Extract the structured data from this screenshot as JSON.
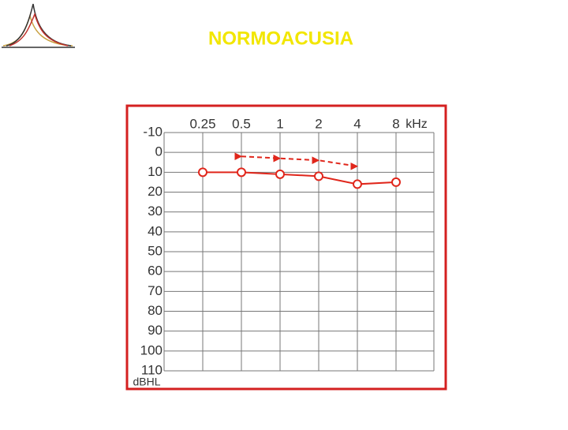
{
  "chart_data": {
    "type": "line",
    "title": "NORMOACUSIA",
    "categories": [
      "0.25",
      "0.5",
      "1",
      "2",
      "4",
      "8"
    ],
    "x_label": "kHz",
    "y_label": "dBHL",
    "series": [
      {
        "color": "#e0261b",
        "linestyle": "solid",
        "marker": "o",
        "values": [
          10,
          10,
          11,
          12,
          16,
          15
        ]
      },
      {
        "color": "#e0261b",
        "linestyle": "dashed",
        "marker": ">",
        "values": [
          null,
          2,
          3,
          4,
          7,
          null
        ]
      }
    ],
    "ylim": [
      -10,
      110
    ],
    "y_inverted": true,
    "yticks": [
      -10,
      0,
      10,
      20,
      30,
      40,
      50,
      60,
      70,
      80,
      90,
      100,
      110
    ],
    "grid": true
  }
}
